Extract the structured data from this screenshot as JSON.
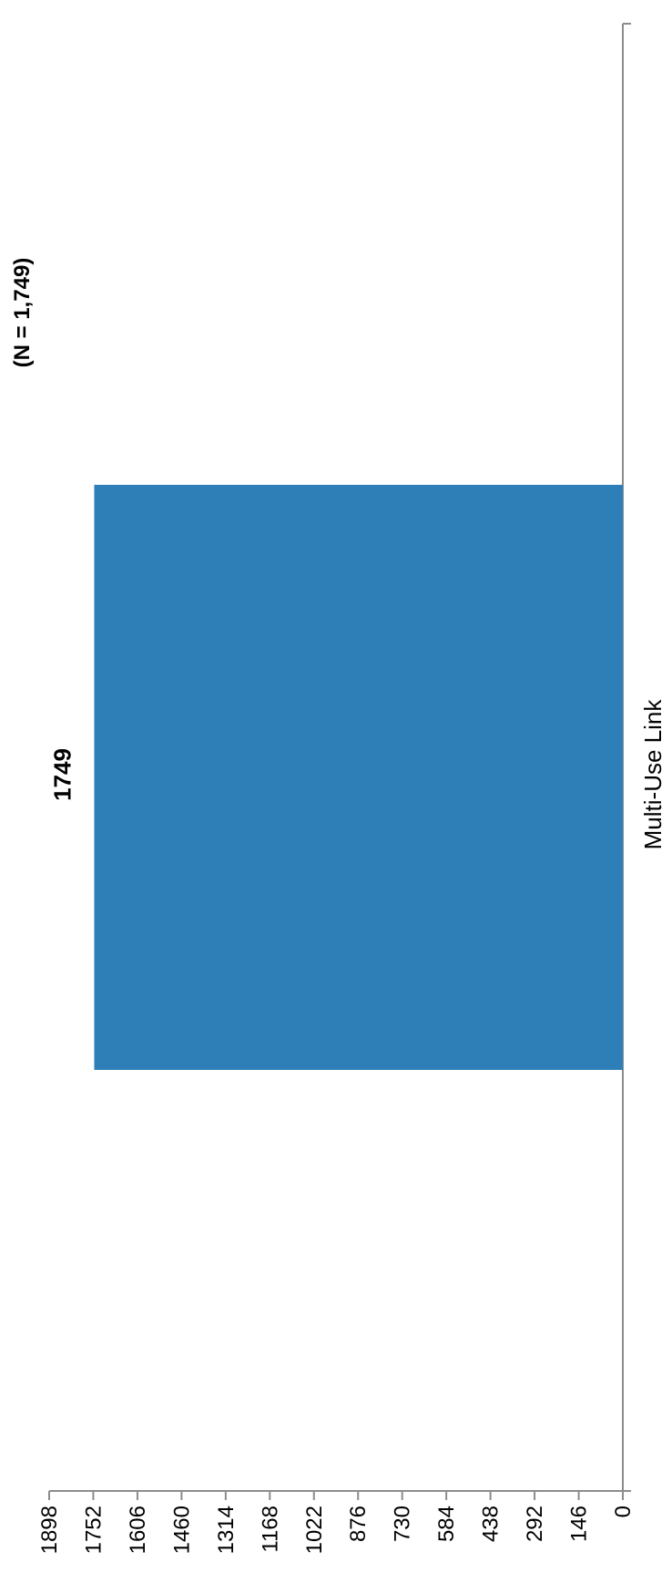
{
  "chart_data": {
    "type": "bar",
    "orientation": "rotated-90",
    "subtitle": "(N = 1,749)",
    "categories": [
      "Multi-Use Link"
    ],
    "values": [
      1749
    ],
    "data_labels": [
      "1749"
    ],
    "value_axis": {
      "ticks": [
        0,
        146,
        292,
        438,
        584,
        730,
        876,
        1022,
        1168,
        1314,
        1460,
        1606,
        1752,
        1898
      ],
      "tick_labels": [
        "0",
        "146",
        "292",
        "438",
        "584",
        "730",
        "876",
        "1022",
        "1168",
        "1314",
        "1460",
        "1606",
        "1752",
        "1898"
      ],
      "range": [
        0,
        1898
      ]
    },
    "xlabel": "",
    "ylabel": "",
    "grid": false,
    "legend": "none",
    "colors": {
      "bar": "#2e7eb8",
      "axis": "#8c8c8c",
      "text": "#000000"
    }
  }
}
